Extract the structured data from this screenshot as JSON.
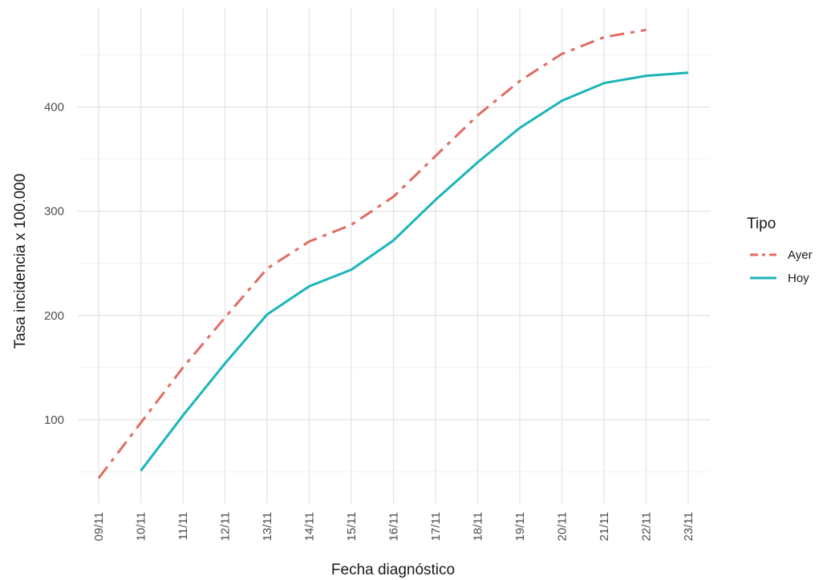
{
  "chart_data": {
    "type": "line",
    "x": [
      "09/11",
      "10/11",
      "11/11",
      "12/11",
      "13/11",
      "14/11",
      "15/11",
      "16/11",
      "17/11",
      "18/11",
      "19/11",
      "20/11",
      "21/11",
      "22/11",
      "23/11"
    ],
    "xlabel": "Fecha diagnóstico",
    "ylabel": "Tasa incidencia x 100.000",
    "ylim": [
      20,
      495
    ],
    "yticks": [
      100,
      200,
      300,
      400
    ],
    "grid": true,
    "legend": {
      "title": "Tipo",
      "placement": "right"
    },
    "series": [
      {
        "name": "Ayer",
        "color": "#E06C63",
        "dash": "dashdot",
        "values": [
          44,
          97,
          150,
          198,
          245,
          271,
          287,
          314,
          353,
          392,
          425,
          451,
          467,
          474,
          null
        ]
      },
      {
        "name": "Hoy",
        "color": "#1BB5BA",
        "dash": "solid",
        "values": [
          null,
          51,
          104,
          154,
          201,
          228,
          244,
          272,
          311,
          347,
          380,
          406,
          423,
          430,
          433
        ]
      }
    ]
  }
}
